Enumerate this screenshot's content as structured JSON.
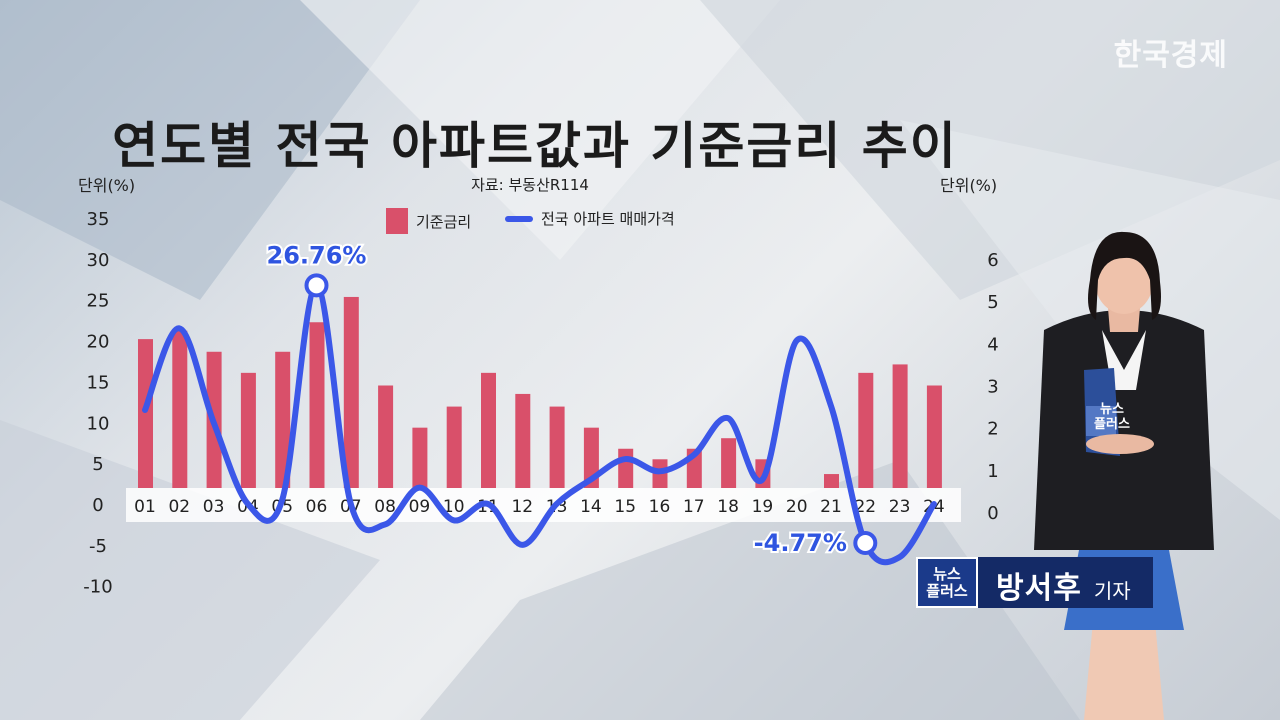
{
  "brand": "한국경제",
  "title": "연도별 전국 아파트값과 기준금리 추이",
  "source": "자료: 부동산R114",
  "unit_left": "단위(%)",
  "unit_right": "단위(%)",
  "reporter": {
    "name": "방서후",
    "role": "기자",
    "show_logo_line1": "뉴스",
    "show_logo_line2": "플러스",
    "tablet_line1": "뉴스",
    "tablet_line2": "플러스"
  },
  "colors": {
    "bar": "#d9506a",
    "line": "#3b57e8",
    "label": "#2f55e0"
  },
  "chart_data": {
    "type": "bar",
    "title": "연도별 전국 아파트값과 기준금리 추이",
    "categories": [
      "01",
      "02",
      "03",
      "04",
      "05",
      "06",
      "07",
      "08",
      "09",
      "10",
      "11",
      "12",
      "13",
      "14",
      "15",
      "16",
      "17",
      "18",
      "19",
      "20",
      "21",
      "22",
      "23",
      "24"
    ],
    "left_axis": {
      "ticks": [
        "35",
        "30",
        "25",
        "20",
        "15",
        "10",
        "5",
        "0",
        "-5",
        "-10"
      ],
      "range": [
        -10,
        35
      ]
    },
    "right_axis": {
      "ticks": [
        "6",
        "5",
        "4",
        "3",
        "2",
        "1",
        "0"
      ],
      "range": [
        0,
        6
      ]
    },
    "series": [
      {
        "name": "기준금리",
        "type": "bar",
        "axis": "right",
        "values": [
          4.1,
          4.3,
          3.8,
          3.3,
          3.8,
          4.5,
          5.1,
          3.0,
          2.0,
          2.5,
          3.3,
          2.8,
          2.5,
          2.0,
          1.5,
          1.25,
          1.5,
          1.75,
          1.25,
          0.5,
          0.9,
          3.3,
          3.5,
          3.0
        ]
      },
      {
        "name": "전국 아파트 매매가격",
        "type": "line",
        "axis": "left",
        "values": [
          11.5,
          21.5,
          10.0,
          0.0,
          0.5,
          26.76,
          0.0,
          -2.5,
          2.0,
          -2.0,
          0.0,
          -5.0,
          0.0,
          3.0,
          5.5,
          4.0,
          6.0,
          10.5,
          3.0,
          20.0,
          12.0,
          -4.77,
          -6.5,
          0.0
        ]
      }
    ],
    "annotations": [
      {
        "label": "26.76%",
        "category": "06",
        "value": 26.76
      },
      {
        "label": "-4.77%",
        "category": "22",
        "value": -4.77
      }
    ]
  }
}
